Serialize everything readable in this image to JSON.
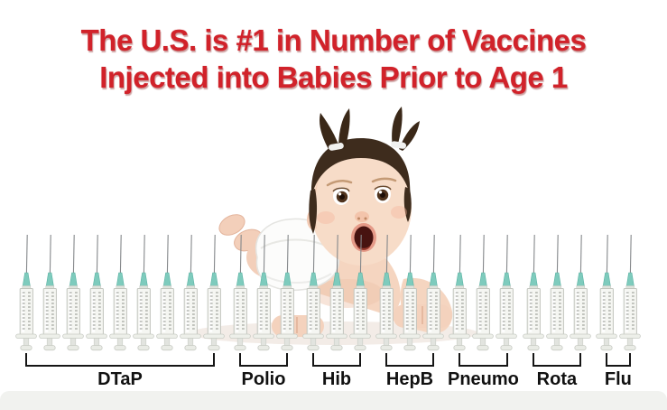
{
  "title": {
    "line1": "The U.S. is #1 in Number of Vaccines",
    "line2": "Injected into Babies Prior to Age 1",
    "color": "#d1222a"
  },
  "chart_data": {
    "type": "bar",
    "style": "pictogram, one syringe icon per vaccine dose",
    "categories": [
      "DTaP",
      "Polio",
      "Hib",
      "HepB",
      "Pneumo",
      "Rota",
      "Flu"
    ],
    "values": [
      9,
      3,
      3,
      3,
      3,
      3,
      2
    ],
    "total_syringes": 26,
    "title": "The U.S. is #1 in Number of Vaccines Injected into Babies Prior to Age 1",
    "legend": "none",
    "grid": false,
    "icon": "syringe-icon",
    "label_color": "#111111",
    "bracket_color": "#151515",
    "icon_colors": {
      "needle": "#85888b",
      "hub": "#7ecbbd",
      "hub_edge": "#58b2a2",
      "barrel": "#f5f6f2",
      "barrel_outline": "#c2c5be",
      "ticks": "#8f928a",
      "plunger": "#e9ebe5",
      "plunger_outline": "#c8cbc4"
    }
  },
  "illustration": {
    "label": "surprised baby with pigtails crawling among syringes",
    "skin_color": "#f5d5c0",
    "hair_color": "#3e2c1d",
    "diaper_color": "#fcfcfb"
  },
  "footer": {
    "bar_color": "#f1f2ef"
  },
  "background_color": "#ffffff"
}
